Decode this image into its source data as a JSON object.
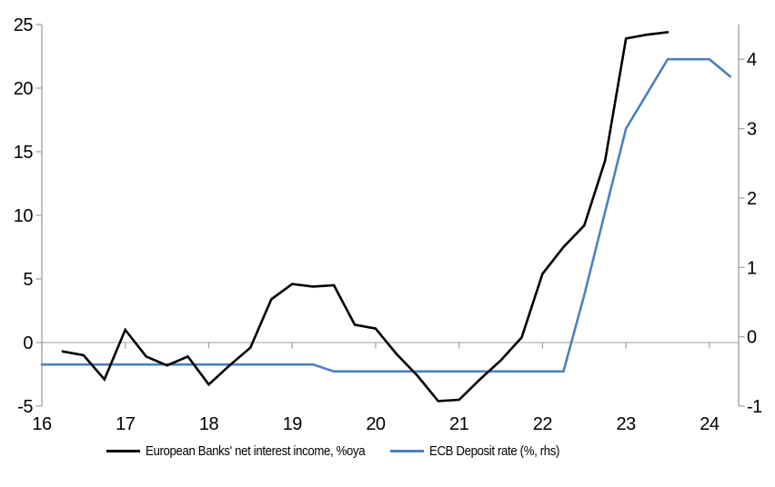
{
  "chart_data": {
    "type": "line",
    "title": "",
    "xlabel": "",
    "ylabel_left": "",
    "ylabel_right": "",
    "grid": "zero-line-only",
    "legend_position": "bottom",
    "x_ticks": [
      16,
      17,
      18,
      19,
      20,
      21,
      22,
      23,
      24
    ],
    "xlim": [
      16,
      24.35
    ],
    "left_axis": {
      "ticks": [
        -5,
        0,
        5,
        10,
        15,
        20,
        25
      ],
      "ylim": [
        -5,
        25
      ]
    },
    "right_axis": {
      "ticks": [
        -1,
        0,
        1,
        2,
        3,
        4
      ],
      "ylim": [
        -1,
        4.5
      ]
    },
    "series": [
      {
        "name": "European Banks' net interest income, %oya",
        "axis": "left",
        "color": "#000000",
        "x": [
          16.25,
          16.5,
          16.75,
          17,
          17.25,
          17.5,
          17.75,
          18,
          18.25,
          18.5,
          18.75,
          19,
          19.25,
          19.5,
          19.75,
          20,
          20.25,
          20.5,
          20.75,
          21,
          21.25,
          21.5,
          21.75,
          22,
          22.25,
          22.5,
          22.75,
          23,
          23.25,
          23.5
        ],
        "values": [
          -0.7,
          -1.0,
          -2.9,
          1.0,
          -1.1,
          -1.8,
          -1.1,
          -3.3,
          -1.8,
          -0.4,
          3.4,
          4.6,
          4.4,
          4.5,
          1.4,
          1.1,
          -0.9,
          -2.6,
          -4.6,
          -4.5,
          -2.9,
          -1.4,
          0.4,
          5.4,
          7.5,
          9.2,
          14.3,
          23.9,
          24.2,
          24.4
        ]
      },
      {
        "name": "ECB Deposit rate (%, rhs)",
        "axis": "right",
        "color": "#4d80bd",
        "x": [
          16,
          16.25,
          16.5,
          16.75,
          17,
          17.25,
          17.5,
          17.75,
          18,
          18.25,
          18.5,
          18.75,
          19,
          19.25,
          19.5,
          19.75,
          20,
          20.25,
          20.5,
          20.75,
          21,
          21.25,
          21.5,
          21.75,
          22,
          22.25,
          22.5,
          22.75,
          23,
          23.25,
          23.5,
          23.75,
          24,
          24.25
        ],
        "values": [
          -0.4,
          -0.4,
          -0.4,
          -0.4,
          -0.4,
          -0.4,
          -0.4,
          -0.4,
          -0.4,
          -0.4,
          -0.4,
          -0.4,
          -0.4,
          -0.4,
          -0.5,
          -0.5,
          -0.5,
          -0.5,
          -0.5,
          -0.5,
          -0.5,
          -0.5,
          -0.5,
          -0.5,
          -0.5,
          -0.5,
          0.6,
          1.8,
          3.0,
          3.5,
          4.0,
          4.0,
          4.0,
          3.75
        ]
      }
    ]
  },
  "legend": {
    "items": [
      {
        "label": "European Banks' net interest income, %oya"
      },
      {
        "label": "ECB Deposit rate (%, rhs)"
      }
    ]
  },
  "colors": {
    "axis": "#a6a6a6",
    "zero_line": "#bfbfbf",
    "text": "#000000",
    "background": "#ffffff"
  }
}
